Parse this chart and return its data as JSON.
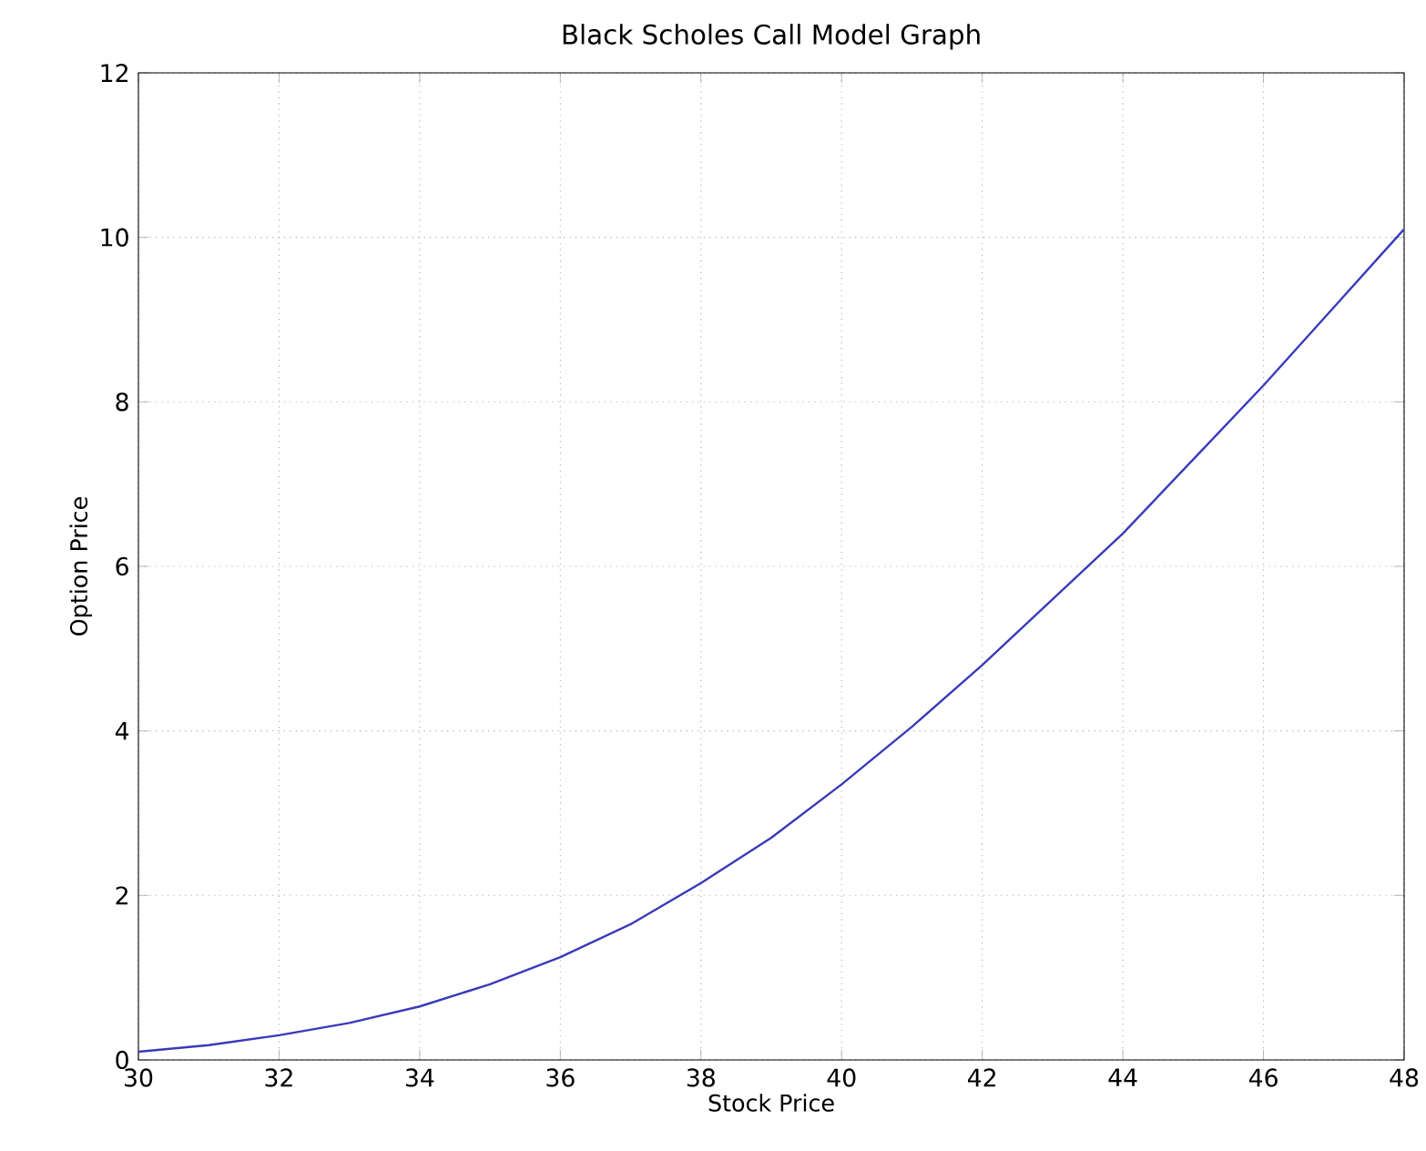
{
  "chart_data": {
    "type": "line",
    "title": "Black Scholes Call Model Graph",
    "xlabel": "Stock Price",
    "ylabel": "Option Price",
    "x": [
      30,
      31,
      32,
      33,
      34,
      35,
      36,
      37,
      38,
      39,
      40,
      41,
      42,
      43,
      44,
      45,
      46,
      47,
      48
    ],
    "series": [
      {
        "color": "#3a3aba",
        "values": [
          0.1,
          0.18,
          0.3,
          0.45,
          0.65,
          0.92,
          1.25,
          1.65,
          2.15,
          2.7,
          3.35,
          4.05,
          4.8,
          5.6,
          6.4,
          7.3,
          8.2,
          9.15,
          10.1
        ]
      }
    ],
    "xlim": [
      30,
      48
    ],
    "ylim": [
      0,
      12
    ],
    "xticks": [
      30,
      32,
      34,
      36,
      38,
      40,
      42,
      44,
      46,
      48
    ],
    "yticks": [
      0,
      2,
      4,
      6,
      8,
      10,
      12
    ],
    "grid": true
  }
}
